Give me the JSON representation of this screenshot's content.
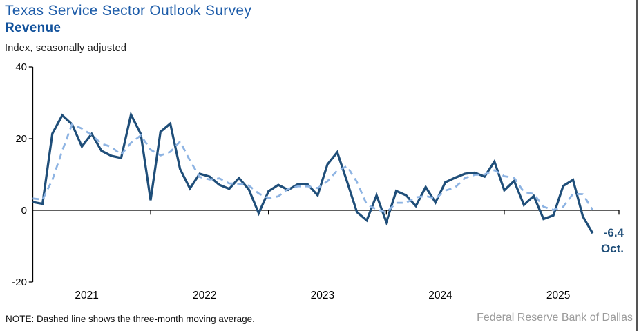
{
  "header": {
    "title": "Texas Service Sector Outlook Survey",
    "subtitle": "Revenue",
    "units": "Index, seasonally adjusted"
  },
  "footer": {
    "note": "NOTE: Dashed line shows the three-month moving average.",
    "source": "Federal Reserve Bank of Dallas"
  },
  "colors": {
    "title_blue": "#1D5CA9",
    "subtitle_blue": "#12529C",
    "solid_line": "#1F4E79",
    "dashed_line": "#8EB4E3",
    "annotation_blue": "#1F4E79",
    "source_gray": "#9B9B9B",
    "axis_black": "#000000"
  },
  "chart_data": {
    "type": "line",
    "title": "Texas Service Sector Outlook Survey — Revenue",
    "ylabel": "Index, seasonally adjusted",
    "xlabel": "",
    "ylim": [
      -20,
      40
    ],
    "yticks": [
      40,
      20,
      0,
      -20
    ],
    "xtick_labels": [
      "2021",
      "2022",
      "2023",
      "2024",
      "2025"
    ],
    "grid": false,
    "legend_position": "none",
    "months": [
      "2021-01",
      "2021-02",
      "2021-03",
      "2021-04",
      "2021-05",
      "2021-06",
      "2021-07",
      "2021-08",
      "2021-09",
      "2021-10",
      "2021-11",
      "2021-12",
      "2022-01",
      "2022-02",
      "2022-03",
      "2022-04",
      "2022-05",
      "2022-06",
      "2022-07",
      "2022-08",
      "2022-09",
      "2022-10",
      "2022-11",
      "2022-12",
      "2023-01",
      "2023-02",
      "2023-03",
      "2023-04",
      "2023-05",
      "2023-06",
      "2023-07",
      "2023-08",
      "2023-09",
      "2023-10",
      "2023-11",
      "2023-12",
      "2024-01",
      "2024-02",
      "2024-03",
      "2024-04",
      "2024-05",
      "2024-06",
      "2024-07",
      "2024-08",
      "2024-09",
      "2024-10",
      "2024-11",
      "2024-12",
      "2025-01",
      "2025-02",
      "2025-03",
      "2025-04",
      "2025-05",
      "2025-06",
      "2025-07",
      "2025-08",
      "2025-09",
      "2025-10"
    ],
    "series": [
      {
        "name": "Revenue index",
        "style": "solid",
        "values": [
          2.3,
          1.8,
          21.4,
          26.5,
          24.0,
          17.8,
          21.3,
          16.6,
          15.2,
          14.6,
          26.7,
          21.3,
          2.8,
          21.9,
          24.2,
          11.5,
          6.1,
          10.2,
          9.4,
          7.1,
          6.0,
          9.0,
          5.8,
          -0.8,
          5.3,
          7.1,
          5.7,
          7.3,
          7.2,
          4.2,
          12.8,
          16.2,
          8.0,
          -0.5,
          -2.8,
          4.2,
          -3.3,
          5.4,
          4.2,
          1.2,
          6.5,
          2.2,
          7.8,
          9.1,
          10.2,
          10.5,
          9.4,
          13.6,
          5.6,
          8.2,
          1.5,
          4.0,
          -2.4,
          -1.4,
          6.8,
          8.5,
          -1.7,
          -6.4
        ]
      },
      {
        "name": "Three-month moving average",
        "style": "dashed",
        "values": [
          3.3,
          3.0,
          8.5,
          16.6,
          24.0,
          22.8,
          21.0,
          18.6,
          17.7,
          15.5,
          18.8,
          20.9,
          16.9,
          15.3,
          16.3,
          19.2,
          13.9,
          9.3,
          8.6,
          8.9,
          7.5,
          7.4,
          6.9,
          4.7,
          3.4,
          3.9,
          6.0,
          6.7,
          6.7,
          6.2,
          8.1,
          11.1,
          12.3,
          7.9,
          1.6,
          0.3,
          -0.6,
          2.1,
          2.1,
          3.6,
          4.0,
          3.3,
          5.5,
          6.4,
          9.0,
          9.9,
          10.0,
          11.2,
          9.5,
          9.1,
          5.1,
          4.6,
          1.0,
          0.1,
          1.0,
          4.6,
          4.5,
          0.1
        ]
      }
    ],
    "annotation": {
      "value_label": "-6.4",
      "month_label": "Oct."
    }
  }
}
